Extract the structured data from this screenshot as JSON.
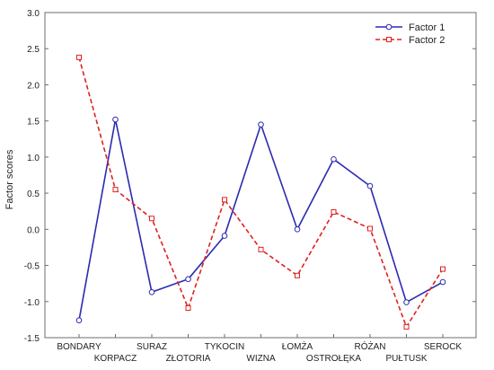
{
  "chart_data": {
    "type": "line",
    "title": "",
    "xlabel": "",
    "ylabel": "Factor scores",
    "ylim": [
      -1.5,
      3.0
    ],
    "yticks": [
      "3.0",
      "2.5",
      "2.0",
      "1.5",
      "1.0",
      "0.5",
      "0.0",
      "-0.5",
      "-1.0",
      "-1.5"
    ],
    "grid": false,
    "legend_position": "top-right",
    "categories": [
      "BONDARY",
      "KORPACZ",
      "SURAZ",
      "ZŁOTORIA",
      "TYKOCIN",
      "WIZNA",
      "ŁOMŻA",
      "OSTROŁĘKA",
      "RÓŻAN",
      "PUŁTUSK",
      "SEROCK"
    ],
    "series": [
      {
        "name": "Factor 1",
        "color": "#2b2bb0",
        "line_style": "solid",
        "marker": "circle",
        "values": [
          -1.26,
          1.52,
          -0.87,
          -0.69,
          -0.09,
          1.45,
          0.0,
          0.97,
          0.6,
          -1.01,
          -0.73
        ]
      },
      {
        "name": "Factor 2",
        "color": "#e02020",
        "line_style": "dashed",
        "marker": "square",
        "values": [
          2.38,
          0.55,
          0.15,
          -1.09,
          0.41,
          -0.28,
          -0.64,
          0.24,
          0.01,
          -1.35,
          -0.55
        ]
      }
    ]
  }
}
